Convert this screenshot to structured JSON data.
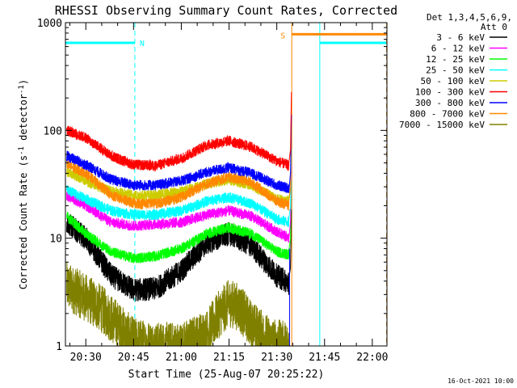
{
  "chart_data": {
    "type": "line",
    "title": "RHESSI Observing Summary Count Rates, Corrected",
    "xlabel": "Start Time (25-Aug-07 20:25:22)",
    "ylabel_main": "Corrected Count Rate (s",
    "ylabel_sup1": "-1",
    "ylabel_mid": " detector",
    "ylabel_sup2": "-1",
    "ylabel_end": ")",
    "y_scale": "log",
    "ylim": [
      1,
      1000
    ],
    "xlim_minutes": [
      -6.4,
      94.6
    ],
    "x_ticks": [
      {
        "t": 0,
        "label": "20:30"
      },
      {
        "t": 15,
        "label": "20:45"
      },
      {
        "t": 30,
        "label": "21:00"
      },
      {
        "t": 45,
        "label": "21:15"
      },
      {
        "t": 60,
        "label": "21:30"
      },
      {
        "t": 75,
        "label": "21:45"
      },
      {
        "t": 90,
        "label": "22:00"
      }
    ],
    "y_ticks": [
      {
        "v": 1,
        "label": "1"
      },
      {
        "v": 10,
        "label": "10"
      },
      {
        "v": 100,
        "label": "100"
      },
      {
        "v": 1000,
        "label": "1000"
      }
    ],
    "legend_position": "top-right outside plot",
    "legend_header": [
      "Det 1,3,4,5,6,9,",
      "Att 0"
    ],
    "series": [
      {
        "name": "3 - 6 keV",
        "color": "#000000",
        "t": [
          -6,
          0,
          8,
          15,
          22,
          30,
          38,
          45,
          52,
          60,
          64
        ],
        "y": [
          14,
          10,
          4.5,
          3.3,
          3.4,
          5,
          9,
          11,
          8.5,
          4.5,
          3.8
        ]
      },
      {
        "name": "6 - 12 keV",
        "color": "#ff00ff",
        "t": [
          -6,
          0,
          8,
          15,
          22,
          30,
          38,
          45,
          52,
          60,
          64
        ],
        "y": [
          25,
          20,
          14,
          13,
          13.5,
          14,
          16.5,
          18,
          16,
          11.5,
          10
        ]
      },
      {
        "name": "12 - 25 keV",
        "color": "#00ff00",
        "t": [
          -6,
          0,
          8,
          15,
          22,
          30,
          38,
          45,
          52,
          60,
          64
        ],
        "y": [
          16,
          11,
          7.5,
          6.5,
          6.8,
          8,
          11,
          12.5,
          11,
          7.5,
          7
        ]
      },
      {
        "name": "25 - 50 keV",
        "color": "#00ffff",
        "t": [
          -6,
          0,
          8,
          15,
          22,
          30,
          38,
          45,
          52,
          60,
          64
        ],
        "y": [
          28,
          23,
          18,
          16.5,
          16.5,
          18,
          22,
          24,
          21,
          15,
          14
        ]
      },
      {
        "name": "50 - 100 keV",
        "color": "#cccc00",
        "t": [
          -6,
          0,
          8,
          15,
          22,
          30,
          38,
          45,
          52,
          60,
          64
        ],
        "y": [
          42,
          34,
          27,
          25,
          25,
          27,
          32,
          35,
          31,
          23,
          22
        ]
      },
      {
        "name": "100 - 300 keV",
        "color": "#ff0000",
        "t": [
          -6,
          0,
          8,
          15,
          22,
          30,
          38,
          45,
          52,
          60,
          64
        ],
        "y": [
          100,
          85,
          58,
          48,
          47,
          55,
          73,
          80,
          70,
          52,
          47
        ]
      },
      {
        "name": "300 - 800 keV",
        "color": "#0000ff",
        "t": [
          -6,
          0,
          8,
          15,
          22,
          30,
          38,
          45,
          52,
          60,
          64
        ],
        "y": [
          58,
          48,
          35,
          31,
          31,
          34,
          41,
          45,
          40,
          31,
          29
        ]
      },
      {
        "name": "800 - 7000 keV",
        "color": "#ff8800",
        "t": [
          -6,
          0,
          8,
          15,
          22,
          30,
          38,
          45,
          52,
          60,
          64
        ],
        "y": [
          48,
          40,
          25,
          21,
          21,
          24,
          32,
          37,
          33,
          22,
          20
        ]
      },
      {
        "name": "7000 - 15000 keV",
        "color": "#808000",
        "t": [
          -6,
          0,
          5,
          8,
          15,
          22,
          30,
          38,
          42,
          45,
          48,
          52,
          58,
          64
        ],
        "y": [
          3.6,
          2.8,
          2.2,
          1.8,
          1.1,
          1,
          1,
          1.3,
          2.0,
          2.5,
          2.3,
          1.6,
          1.1,
          1
        ]
      }
    ],
    "night_intervals": [
      {
        "start": -6.4,
        "end": 15.4,
        "flag": "N",
        "flag_color": "#00ffff",
        "level": 650
      },
      {
        "start": 73.5,
        "end": 94.5,
        "flag": "",
        "flag_color": "#00ffff",
        "level": 650
      }
    ],
    "saa_interval": {
      "start": 64.7,
      "end": 94.5,
      "flag": "S",
      "flag_color": "#ff8800",
      "level": 780
    },
    "flare_rise_t": 63.8,
    "flare_peak": 240
  },
  "footer": {
    "timestamp": "16-Oct-2021 10:00"
  }
}
